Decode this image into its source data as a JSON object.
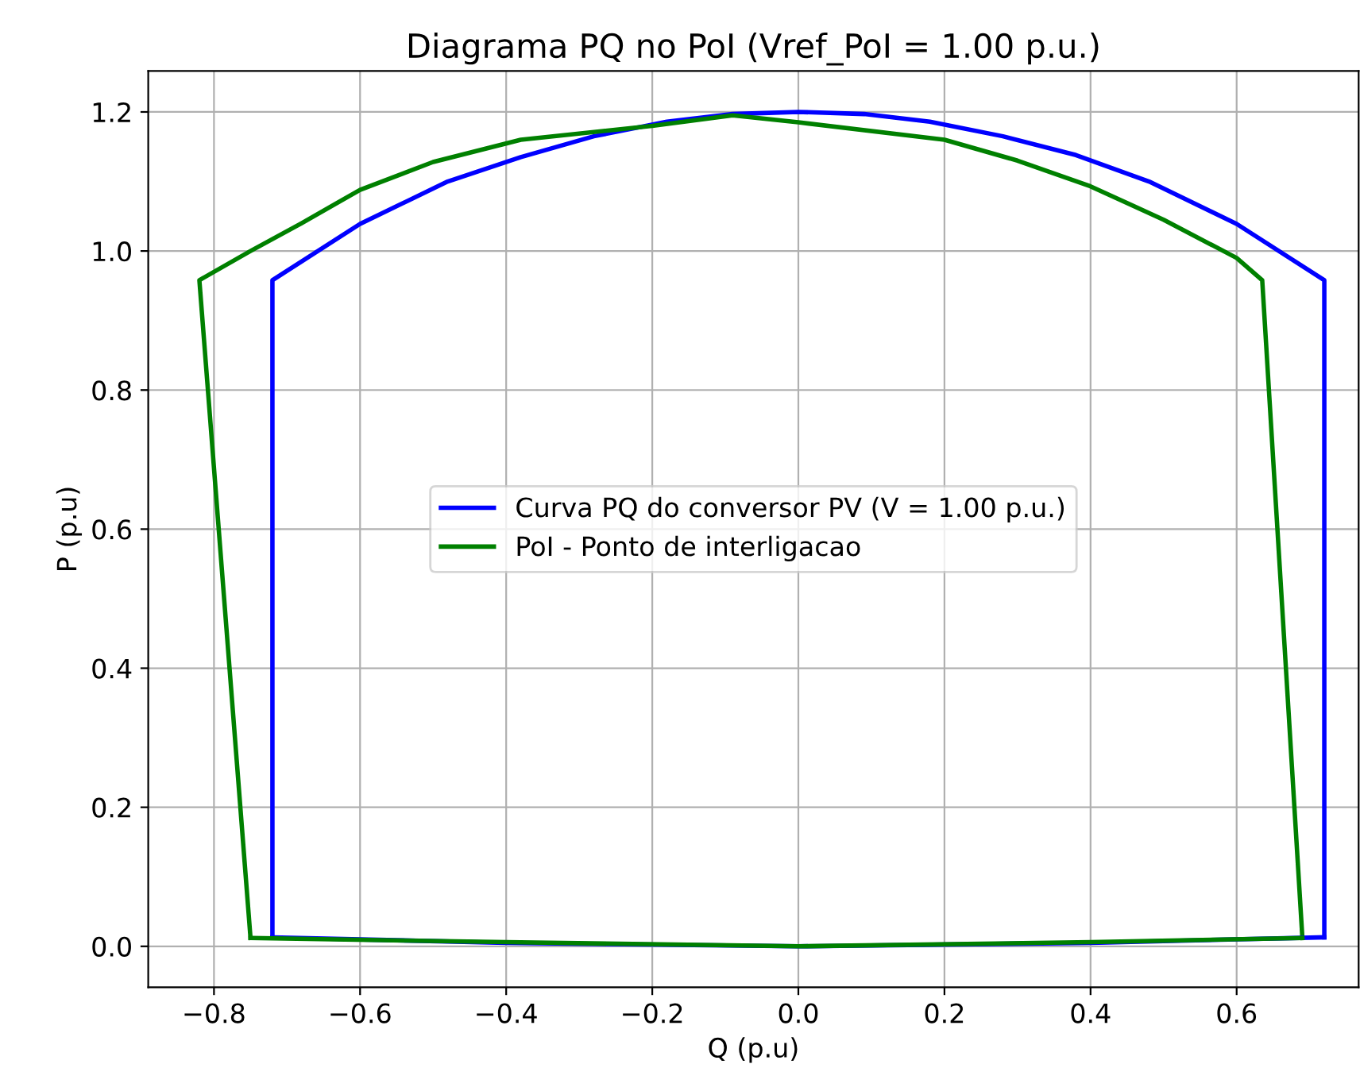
{
  "chart_data": {
    "type": "line",
    "title": "Diagrama PQ no PoI (Vref_PoI = 1.00 p.u.)",
    "xlabel": "Q (p.u)",
    "ylabel": "P (p.u)",
    "xlim": [
      -0.89,
      0.767
    ],
    "ylim": [
      -0.059,
      1.259
    ],
    "xticks": [
      {
        "value": -0.8,
        "label": "−0.8"
      },
      {
        "value": -0.6,
        "label": "−0.6"
      },
      {
        "value": -0.4,
        "label": "−0.4"
      },
      {
        "value": -0.2,
        "label": "−0.2"
      },
      {
        "value": 0,
        "label": "0.0"
      },
      {
        "value": 0.2,
        "label": "0.2"
      },
      {
        "value": 0.4,
        "label": "0.4"
      },
      {
        "value": 0.6,
        "label": "0.6"
      }
    ],
    "yticks": [
      {
        "value": 0,
        "label": "0.0"
      },
      {
        "value": 0.2,
        "label": "0.2"
      },
      {
        "value": 0.4,
        "label": "0.4"
      },
      {
        "value": 0.6,
        "label": "0.6"
      },
      {
        "value": 0.8,
        "label": "0.8"
      },
      {
        "value": 1.0,
        "label": "1.0"
      },
      {
        "value": 1.2,
        "label": "1.2"
      }
    ],
    "grid": true,
    "legend": "center",
    "marker": "none",
    "line_style": "solid",
    "series": [
      {
        "name": "Curva PQ do conversor PV (V = 1.00 p.u.)",
        "color": "#0000ff",
        "x": [
          0.72,
          0.72,
          0.6,
          0.48,
          0.38,
          0.28,
          0.18,
          0.09,
          0,
          -0.09,
          -0.18,
          -0.28,
          -0.38,
          -0.48,
          -0.6,
          -0.72,
          -0.72
        ],
        "values": [
          0.013,
          0.958,
          1.039,
          1.1,
          1.138,
          1.165,
          1.186,
          1.197,
          1.2,
          1.197,
          1.186,
          1.165,
          1.135,
          1.1,
          1.039,
          0.958,
          0.013
        ]
      },
      {
        "name": "PoI - Ponto de interligacao",
        "color": "#008000",
        "x": [
          0.69,
          0.635,
          0.6,
          0.5,
          0.4,
          0.3,
          0.2,
          0,
          -0.09,
          -0.2,
          -0.38,
          -0.5,
          -0.6,
          -0.68,
          -0.75,
          -0.82,
          -0.75
        ],
        "values": [
          0.012,
          0.958,
          0.99,
          1.045,
          1.093,
          1.13,
          1.16,
          1.185,
          1.195,
          1.18,
          1.16,
          1.128,
          1.088,
          1.04,
          1.0,
          0.958,
          0.012
        ]
      },
      {
        "color": "#0000ff",
        "x": [
          -0.72,
          -0.4,
          0,
          0.4,
          0.72
        ],
        "values": [
          0.013,
          0.005,
          0,
          0.005,
          0.013
        ]
      },
      {
        "color": "#008000",
        "x": [
          -0.75,
          -0.4,
          0,
          0.4,
          0.69
        ],
        "values": [
          0.012,
          0.006,
          0,
          0.006,
          0.012
        ]
      }
    ]
  }
}
